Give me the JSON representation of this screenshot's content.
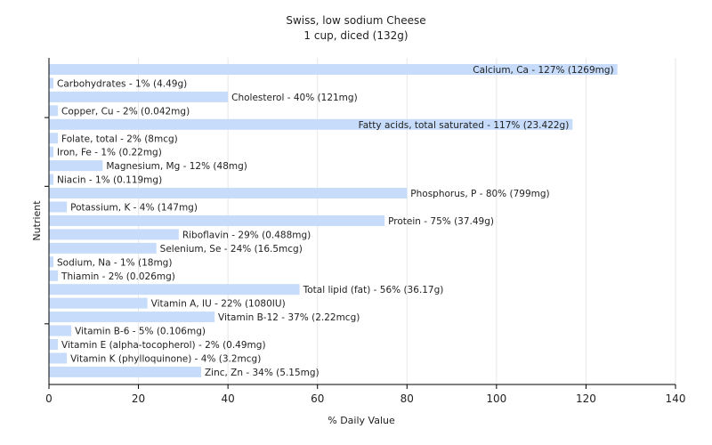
{
  "chart_data": {
    "type": "bar",
    "orientation": "horizontal",
    "title": "Swiss, low sodium Cheese",
    "subtitle": "1 cup, diced (132g)",
    "xlabel": "% Daily Value",
    "ylabel": "Nutrient",
    "xlim": [
      0,
      140
    ],
    "xticks": [
      0,
      20,
      40,
      60,
      80,
      100,
      120,
      140
    ],
    "grid": true,
    "bar_color": "#c6dcfa",
    "grid_color": "#e6e6e6",
    "categories": [
      "Calcium, Ca",
      "Carbohydrates",
      "Cholesterol",
      "Copper, Cu",
      "Fatty acids, total saturated",
      "Folate, total",
      "Iron, Fe",
      "Magnesium, Mg",
      "Niacin",
      "Phosphorus, P",
      "Potassium, K",
      "Protein",
      "Riboflavin",
      "Selenium, Se",
      "Sodium, Na",
      "Thiamin",
      "Total lipid (fat)",
      "Vitamin A, IU",
      "Vitamin B-12",
      "Vitamin B-6",
      "Vitamin E (alpha-tocopherol)",
      "Vitamin K (phylloquinone)",
      "Zinc, Zn"
    ],
    "values": [
      127,
      1,
      40,
      2,
      117,
      2,
      1,
      12,
      1,
      80,
      4,
      75,
      29,
      24,
      1,
      2,
      56,
      22,
      37,
      5,
      2,
      4,
      34
    ],
    "labels": [
      "Calcium, Ca - 127% (1269mg)",
      "Carbohydrates - 1% (4.49g)",
      "Cholesterol - 40% (121mg)",
      "Copper, Cu - 2% (0.042mg)",
      "Fatty acids, total saturated - 117% (23.422g)",
      "Folate, total - 2% (8mcg)",
      "Iron, Fe - 1% (0.22mg)",
      "Magnesium, Mg - 12% (48mg)",
      "Niacin - 1% (0.119mg)",
      "Phosphorus, P - 80% (799mg)",
      "Potassium, K - 4% (147mg)",
      "Protein - 75% (37.49g)",
      "Riboflavin - 29% (0.488mg)",
      "Selenium, Se - 24% (16.5mcg)",
      "Sodium, Na - 1% (18mg)",
      "Thiamin - 2% (0.026mg)",
      "Total lipid (fat) - 56% (36.17g)",
      "Vitamin A, IU - 22% (1080IU)",
      "Vitamin B-12 - 37% (2.22mcg)",
      "Vitamin B-6 - 5% (0.106mg)",
      "Vitamin E (alpha-tocopherol) - 2% (0.49mg)",
      "Vitamin K (phylloquinone) - 4% (3.2mcg)",
      "Zinc, Zn - 34% (5.15mg)"
    ]
  }
}
